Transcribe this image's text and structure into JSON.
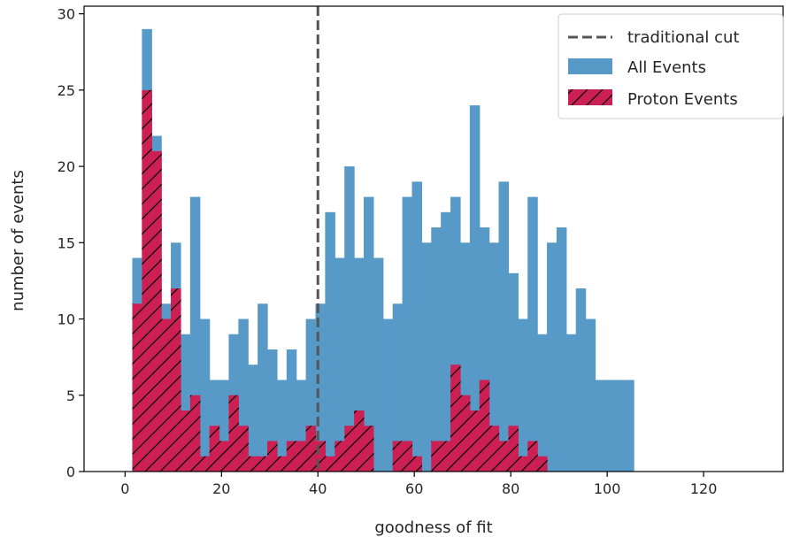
{
  "chart_data": {
    "type": "bar",
    "xlabel": "goodness of fit",
    "ylabel": "number of events",
    "xlim": [
      -8.5,
      136.5
    ],
    "ylim": [
      0,
      30.5
    ],
    "xticks": [
      0,
      20,
      40,
      60,
      80,
      100,
      120
    ],
    "yticks": [
      0,
      5,
      10,
      15,
      20,
      25,
      30
    ],
    "bin_start": 1.5,
    "bin_width": 2,
    "cut_line": {
      "name": "traditional cut",
      "x": 40,
      "color": "#555555"
    },
    "series": [
      {
        "name": "All Events",
        "color": "#5799c7",
        "values": [
          14,
          29,
          22,
          11,
          15,
          9,
          18,
          10,
          6,
          6,
          9,
          10,
          7,
          11,
          8,
          6,
          8,
          6,
          10,
          11,
          17,
          14,
          20,
          14,
          18,
          14,
          10,
          11,
          18,
          19,
          15,
          16,
          17,
          18,
          15,
          24,
          16,
          15,
          19,
          13,
          10,
          18,
          9,
          15,
          16,
          9,
          12,
          10,
          6,
          6,
          6,
          6
        ]
      },
      {
        "name": "Proton Events",
        "color": "#cc1f54",
        "hatch": true,
        "values": [
          11,
          25,
          21,
          10,
          12,
          4,
          5,
          1,
          3,
          2,
          5,
          3,
          1,
          1,
          2,
          1,
          2,
          2,
          3,
          2,
          1,
          2,
          3,
          4,
          3,
          0,
          0,
          2,
          2,
          1,
          0,
          2,
          2,
          7,
          5,
          4,
          6,
          3,
          2,
          3,
          1,
          2,
          1,
          0,
          0,
          0,
          0,
          0,
          0,
          0,
          0,
          0
        ]
      }
    ],
    "legend": {
      "placement": "top-right"
    }
  }
}
